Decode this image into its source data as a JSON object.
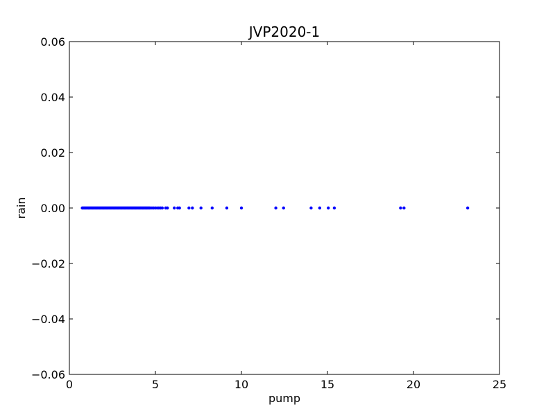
{
  "chart_data": {
    "type": "scatter",
    "title": "JVP2020-1",
    "xlabel": "pump",
    "ylabel": "rain",
    "xlim": [
      0,
      25
    ],
    "ylim": [
      -0.06,
      0.06
    ],
    "xticks": [
      0,
      5,
      10,
      15,
      20,
      25
    ],
    "yticks": [
      -0.06,
      -0.04,
      -0.02,
      0.0,
      0.02,
      0.04,
      0.06
    ],
    "xtick_labels": [
      "0",
      "5",
      "10",
      "15",
      "20",
      "25"
    ],
    "ytick_labels": [
      "−0.06",
      "−0.04",
      "−0.02",
      "0.00",
      "0.02",
      "0.04",
      "0.06"
    ],
    "grid": false,
    "marker_color": "#0000ff",
    "series": [
      {
        "x": [
          0.75,
          0.8,
          0.85,
          0.9,
          0.95,
          1.0,
          1.05,
          1.1,
          1.15,
          1.2,
          1.25,
          1.3,
          1.35,
          1.4,
          1.45,
          1.5,
          1.55,
          1.6,
          1.65,
          1.7,
          1.75,
          1.8,
          1.85,
          1.9,
          1.95,
          2.0,
          2.05,
          2.1,
          2.15,
          2.2,
          2.25,
          2.3,
          2.35,
          2.4,
          2.45,
          2.5,
          2.55,
          2.6,
          2.65,
          2.7,
          2.75,
          2.8,
          2.85,
          2.9,
          2.95,
          3.0,
          3.05,
          3.1,
          3.15,
          3.2,
          3.25,
          3.3,
          3.35,
          3.4,
          3.45,
          3.5,
          3.55,
          3.6,
          3.65,
          3.7,
          3.75,
          3.8,
          3.85,
          3.9,
          3.95,
          4.0,
          4.05,
          4.1,
          4.15,
          4.2,
          4.25,
          4.3,
          4.35,
          4.4,
          4.45,
          4.5,
          4.55,
          4.6,
          4.65,
          4.7,
          4.8,
          4.9,
          5.0,
          5.1,
          5.2,
          5.3,
          5.4,
          5.6,
          5.7,
          6.1,
          6.3,
          6.4,
          6.95,
          7.15,
          7.65,
          8.3,
          9.15,
          10.0,
          12.0,
          12.45,
          14.05,
          14.55,
          15.05,
          15.4,
          19.25,
          19.45,
          23.15
        ],
        "y": [
          0,
          0,
          0,
          0,
          0,
          0,
          0,
          0,
          0,
          0,
          0,
          0,
          0,
          0,
          0,
          0,
          0,
          0,
          0,
          0,
          0,
          0,
          0,
          0,
          0,
          0,
          0,
          0,
          0,
          0,
          0,
          0,
          0,
          0,
          0,
          0,
          0,
          0,
          0,
          0,
          0,
          0,
          0,
          0,
          0,
          0,
          0,
          0,
          0,
          0,
          0,
          0,
          0,
          0,
          0,
          0,
          0,
          0,
          0,
          0,
          0,
          0,
          0,
          0,
          0,
          0,
          0,
          0,
          0,
          0,
          0,
          0,
          0,
          0,
          0,
          0,
          0,
          0,
          0,
          0,
          0,
          0,
          0,
          0,
          0,
          0,
          0,
          0,
          0,
          0,
          0,
          0,
          0,
          0,
          0,
          0,
          0,
          0,
          0,
          0,
          0,
          0,
          0,
          0,
          0,
          0,
          0
        ]
      }
    ]
  }
}
